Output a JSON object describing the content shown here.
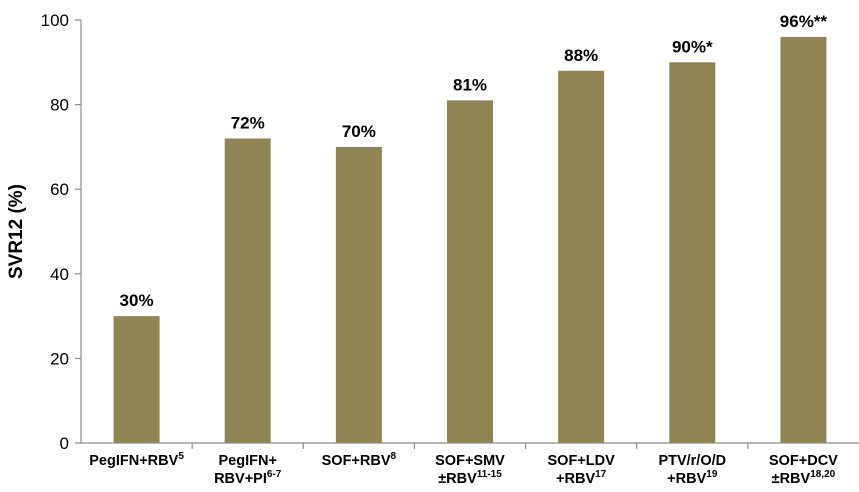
{
  "chart_data": {
    "type": "bar",
    "ylabel": "SVR12 (%)",
    "ylim": [
      0,
      100
    ],
    "yticks": [
      0,
      20,
      40,
      60,
      80,
      100
    ],
    "bar_color": "#8f8453",
    "grid": false,
    "categories": [
      {
        "lines": [
          {
            "text": "PegIFN+RBV",
            "sup": "5"
          }
        ]
      },
      {
        "lines": [
          {
            "text": "PegIFN+",
            "sup": ""
          },
          {
            "text": "RBV+PI",
            "sup": "6-7"
          }
        ]
      },
      {
        "lines": [
          {
            "text": "SOF+RBV",
            "sup": "8"
          }
        ]
      },
      {
        "lines": [
          {
            "text": "SOF+SMV",
            "sup": ""
          },
          {
            "text": "±RBV",
            "sup": "11-15"
          }
        ]
      },
      {
        "lines": [
          {
            "text": "SOF+LDV",
            "sup": ""
          },
          {
            "text": "+RBV",
            "sup": "17"
          }
        ]
      },
      {
        "lines": [
          {
            "text": "PTV/r/O/D",
            "sup": ""
          },
          {
            "text": "+RBV",
            "sup": "19"
          }
        ]
      },
      {
        "lines": [
          {
            "text": "SOF+DCV",
            "sup": ""
          },
          {
            "text": "±RBV",
            "sup": "18,20"
          }
        ]
      }
    ],
    "values": [
      30,
      72,
      70,
      81,
      88,
      90,
      96
    ],
    "data_labels": [
      "30%",
      "72%",
      "70%",
      "81%",
      "88%",
      "90%*",
      "96%**"
    ]
  }
}
